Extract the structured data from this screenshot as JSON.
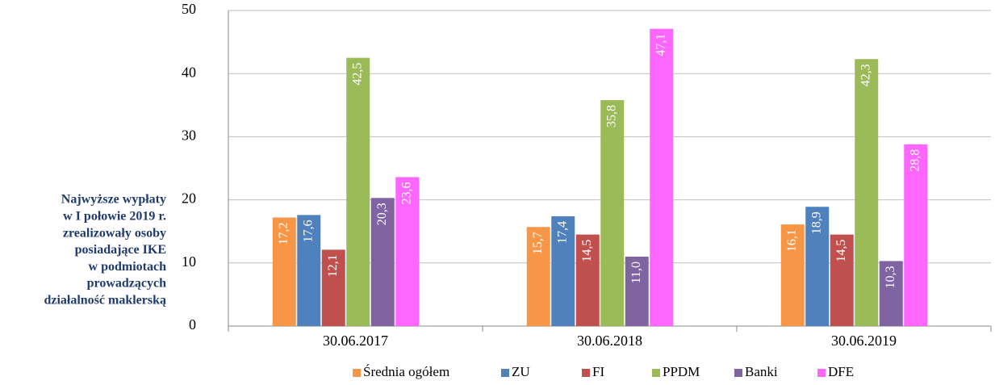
{
  "chart_data": {
    "type": "bar",
    "annotation_lines": [
      "Najwyższe wypłaty",
      "w I połowie 2019 r.",
      "zrealizowały osoby",
      "posiadające IKE",
      "w podmiotach",
      "prowadzących",
      "działalność maklerską"
    ],
    "categories": [
      "30.06.2017",
      "30.06.2018",
      "30.06.2019"
    ],
    "series": [
      {
        "name": "Średnia ogółem",
        "color": "#f79646",
        "values": [
          17.2,
          15.7,
          16.1
        ],
        "value_labels": [
          "17,2",
          "15,7",
          "16,1"
        ]
      },
      {
        "name": "ZU",
        "color": "#4f81bd",
        "values": [
          17.6,
          17.4,
          18.9
        ],
        "value_labels": [
          "17,6",
          "17,4",
          "18,9"
        ]
      },
      {
        "name": "FI",
        "color": "#c0504d",
        "values": [
          12.1,
          14.5,
          14.5
        ],
        "value_labels": [
          "12,1",
          "14,5",
          "14,5"
        ]
      },
      {
        "name": "PPDM",
        "color": "#9bbb59",
        "values": [
          42.5,
          35.8,
          42.3
        ],
        "value_labels": [
          "42,5",
          "35,8",
          "42,3"
        ]
      },
      {
        "name": "Banki",
        "color": "#8064a2",
        "values": [
          20.3,
          11.0,
          10.3
        ],
        "value_labels": [
          "20,3",
          "11,0",
          "10,3"
        ]
      },
      {
        "name": "DFE",
        "color": "#ff66ff",
        "values": [
          23.6,
          47.1,
          28.8
        ],
        "value_labels": [
          "23,6",
          "47,1",
          "28,8"
        ]
      }
    ],
    "ylim": [
      0,
      50
    ],
    "yticks": [
      0,
      10,
      20,
      30,
      40,
      50
    ],
    "grid": true,
    "legend": "bottom"
  }
}
